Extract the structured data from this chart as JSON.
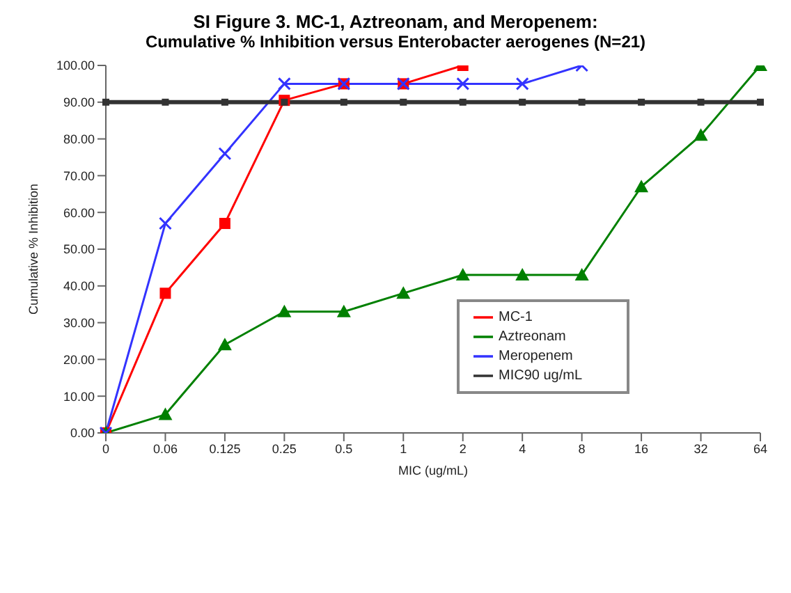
{
  "chart_data": {
    "type": "line",
    "title": "SI Figure 3. MC-1, Aztreonam, and Meropenem:",
    "subtitle": "Cumulative % Inhibition versus Enterobacter aerogenes (N=21)",
    "xlabel": "MIC (ug/mL)",
    "ylabel": "Cumulative % Inhibition",
    "categories": [
      "0",
      "0.06",
      "0.125",
      "0.25",
      "0.5",
      "1",
      "2",
      "4",
      "8",
      "16",
      "32",
      "64"
    ],
    "series": [
      {
        "name": "MC-1",
        "color": "#ff0000",
        "marker": "square",
        "values": [
          0,
          38,
          57,
          90.5,
          95,
          95,
          100,
          null,
          null,
          null,
          null,
          null
        ]
      },
      {
        "name": "Aztreonam",
        "color": "#008000",
        "marker": "triangle",
        "values": [
          0,
          5,
          24,
          33,
          33,
          38,
          43,
          43,
          43,
          67,
          81,
          100
        ]
      },
      {
        "name": "Meropenem",
        "color": "#3333ff",
        "marker": "cross",
        "values": [
          0,
          57,
          76,
          95,
          95,
          95,
          95,
          95,
          100,
          null,
          null,
          null
        ]
      },
      {
        "name": "MIC90 ug/mL",
        "color": "#333333",
        "marker": "square",
        "values": [
          90,
          90,
          90,
          90,
          90,
          90,
          90,
          90,
          90,
          90,
          90,
          90
        ]
      }
    ],
    "ylim": [
      0,
      100
    ],
    "yticks": [
      {
        "value": 0,
        "label": "0.00"
      },
      {
        "value": 10,
        "label": "10.00"
      },
      {
        "value": 20,
        "label": "20.00"
      },
      {
        "value": 30,
        "label": "30.00"
      },
      {
        "value": 40,
        "label": "40.00"
      },
      {
        "value": 50,
        "label": "50.00"
      },
      {
        "value": 60,
        "label": "60.00"
      },
      {
        "value": 70,
        "label": "70.00"
      },
      {
        "value": 80,
        "label": "80.00"
      },
      {
        "value": 90,
        "label": "90.00"
      },
      {
        "value": 100,
        "label": "100.00"
      }
    ],
    "legend": "bottom right",
    "grid": false
  }
}
